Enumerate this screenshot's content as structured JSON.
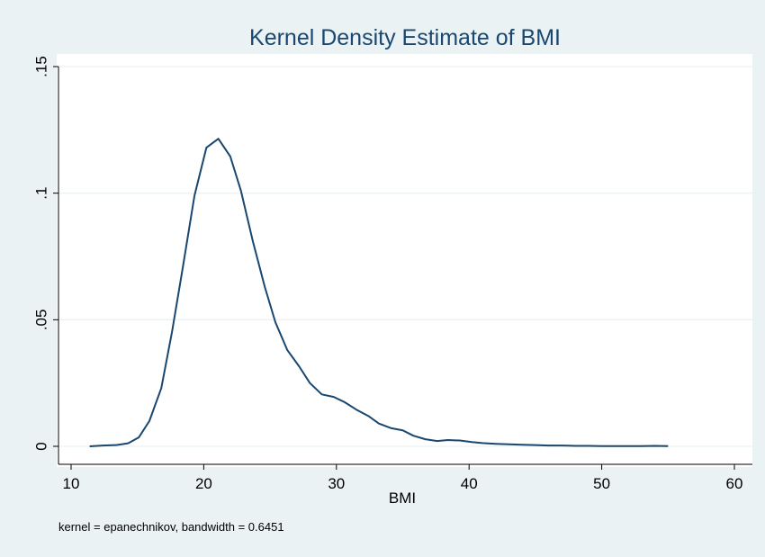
{
  "chart_data": {
    "type": "line",
    "title": "Kernel Density Estimate of BMI",
    "xlabel": "BMI",
    "ylabel": "",
    "note": "kernel = epanechnikov, bandwidth = 0.6451",
    "xlim": [
      10,
      60
    ],
    "ylim": [
      0,
      0.15
    ],
    "x_ticks": [
      10,
      20,
      30,
      40,
      50,
      60
    ],
    "x_tick_labels": [
      "10",
      "20",
      "30",
      "40",
      "50",
      "60"
    ],
    "y_ticks": [
      0,
      0.05,
      0.1,
      0.15
    ],
    "y_tick_labels": [
      "0",
      ".05",
      ".1",
      ".15"
    ],
    "grid": true,
    "legend": "none",
    "colors": {
      "background": "#eaf2f3",
      "plot_background": "#ffffff",
      "line": "#1a476f",
      "grid": "#eaf2f3",
      "title": "#1a476f"
    },
    "series": [
      {
        "x": [
          11.4,
          12.4,
          13.4,
          14.3,
          15.1,
          15.9,
          16.8,
          17.6,
          18.4,
          19.3,
          20.2,
          21.1,
          22.0,
          22.8,
          23.7,
          24.6,
          25.4,
          26.3,
          27.2,
          28.0,
          28.9,
          29.8,
          30.6,
          31.5,
          32.4,
          33.2,
          34.1,
          35.0,
          35.8,
          36.7,
          37.6,
          38.4,
          39.3,
          40.2,
          41.0,
          42.0,
          43.0,
          44.0,
          45.0,
          46.0,
          47.0,
          48.0,
          49.0,
          50.0,
          51.0,
          52.0,
          53.0,
          54.0,
          55.0
        ],
        "values": [
          0.0,
          0.0003,
          0.0005,
          0.0012,
          0.0035,
          0.01,
          0.023,
          0.045,
          0.07,
          0.099,
          0.118,
          0.1215,
          0.1145,
          0.101,
          0.081,
          0.063,
          0.049,
          0.038,
          0.0315,
          0.025,
          0.0205,
          0.0195,
          0.0175,
          0.0145,
          0.012,
          0.009,
          0.0072,
          0.0063,
          0.0042,
          0.0028,
          0.0021,
          0.0025,
          0.0023,
          0.0017,
          0.0013,
          0.001,
          0.0008,
          0.0006,
          0.0005,
          0.0003,
          0.0003,
          0.0002,
          0.0002,
          0.0001,
          0.0001,
          0.0001,
          0.0001,
          0.0002,
          0.0001
        ]
      }
    ]
  }
}
